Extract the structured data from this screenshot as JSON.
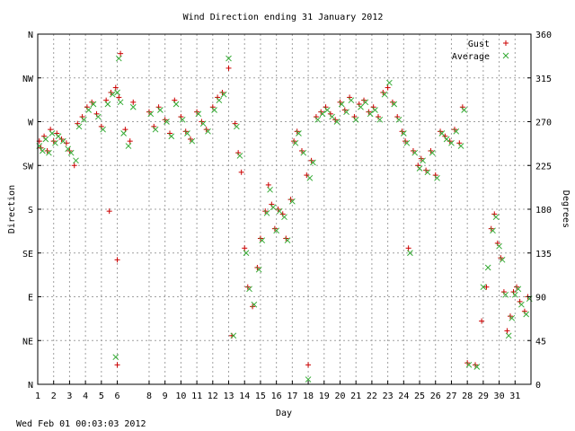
{
  "chart_data": {
    "type": "scatter",
    "title": "Wind Direction ending 31 January 2012",
    "xlabel": "Day",
    "ylabel_left": "Direction",
    "ylabel_right": "Degrees",
    "xlim": [
      1,
      32
    ],
    "ylim": [
      0,
      360
    ],
    "x_ticks": [
      1,
      2,
      3,
      4,
      5,
      6,
      8,
      9,
      10,
      11,
      12,
      13,
      14,
      15,
      16,
      17,
      18,
      19,
      20,
      21,
      22,
      23,
      24,
      25,
      26,
      27,
      28,
      29,
      30,
      31
    ],
    "y_ticks_left": [
      {
        "value": 0,
        "label": "N"
      },
      {
        "value": 45,
        "label": "NE"
      },
      {
        "value": 90,
        "label": "E"
      },
      {
        "value": 135,
        "label": "SE"
      },
      {
        "value": 180,
        "label": "S"
      },
      {
        "value": 225,
        "label": "SW"
      },
      {
        "value": 270,
        "label": "W"
      },
      {
        "value": 315,
        "label": "NW"
      },
      {
        "value": 360,
        "label": "N"
      }
    ],
    "y_ticks_right": [
      0,
      45,
      90,
      135,
      180,
      225,
      270,
      315,
      360
    ],
    "grid": true,
    "legend_position": "top-right",
    "series": [
      {
        "name": "Gust",
        "marker": "+",
        "color": "#cc0000",
        "points": [
          [
            1.1,
            250
          ],
          [
            1.2,
            243
          ],
          [
            1.4,
            255
          ],
          [
            1.6,
            240
          ],
          [
            1.8,
            262
          ],
          [
            2.0,
            250
          ],
          [
            2.2,
            258
          ],
          [
            2.5,
            252
          ],
          [
            2.8,
            248
          ],
          [
            3.0,
            240
          ],
          [
            3.3,
            225
          ],
          [
            3.5,
            268
          ],
          [
            3.8,
            275
          ],
          [
            4.1,
            285
          ],
          [
            4.4,
            290
          ],
          [
            4.7,
            278
          ],
          [
            5.0,
            265
          ],
          [
            5.3,
            292
          ],
          [
            5.6,
            300
          ],
          [
            5.9,
            305
          ],
          [
            6.1,
            295
          ],
          [
            5.5,
            178
          ],
          [
            6.0,
            128
          ],
          [
            6.0,
            20
          ],
          [
            6.2,
            340
          ],
          [
            6.5,
            262
          ],
          [
            6.8,
            250
          ],
          [
            7.0,
            290
          ],
          [
            8.0,
            280
          ],
          [
            8.3,
            265
          ],
          [
            8.6,
            285
          ],
          [
            9.0,
            272
          ],
          [
            9.3,
            258
          ],
          [
            9.6,
            292
          ],
          [
            10.0,
            275
          ],
          [
            10.3,
            260
          ],
          [
            10.6,
            252
          ],
          [
            11.0,
            280
          ],
          [
            11.3,
            270
          ],
          [
            11.6,
            262
          ],
          [
            12.0,
            285
          ],
          [
            12.3,
            295
          ],
          [
            12.6,
            300
          ],
          [
            13.0,
            325
          ],
          [
            13.2,
            50
          ],
          [
            13.4,
            268
          ],
          [
            13.6,
            238
          ],
          [
            13.8,
            218
          ],
          [
            14.0,
            140
          ],
          [
            14.2,
            100
          ],
          [
            14.5,
            80
          ],
          [
            14.8,
            120
          ],
          [
            15.0,
            150
          ],
          [
            15.3,
            178
          ],
          [
            15.5,
            205
          ],
          [
            15.7,
            185
          ],
          [
            15.9,
            160
          ],
          [
            16.1,
            180
          ],
          [
            16.4,
            175
          ],
          [
            16.6,
            150
          ],
          [
            16.9,
            190
          ],
          [
            17.1,
            250
          ],
          [
            17.3,
            260
          ],
          [
            17.6,
            240
          ],
          [
            17.9,
            215
          ],
          [
            18.0,
            20
          ],
          [
            18.2,
            230
          ],
          [
            18.5,
            275
          ],
          [
            18.8,
            280
          ],
          [
            19.1,
            285
          ],
          [
            19.4,
            278
          ],
          [
            19.7,
            272
          ],
          [
            20.0,
            290
          ],
          [
            20.3,
            282
          ],
          [
            20.6,
            295
          ],
          [
            20.9,
            275
          ],
          [
            21.2,
            288
          ],
          [
            21.5,
            292
          ],
          [
            21.8,
            280
          ],
          [
            22.1,
            285
          ],
          [
            22.4,
            275
          ],
          [
            22.7,
            300
          ],
          [
            23.0,
            305
          ],
          [
            23.3,
            290
          ],
          [
            23.6,
            275
          ],
          [
            23.9,
            260
          ],
          [
            24.1,
            250
          ],
          [
            24.3,
            140
          ],
          [
            24.6,
            240
          ],
          [
            24.9,
            225
          ],
          [
            25.1,
            232
          ],
          [
            25.4,
            220
          ],
          [
            25.7,
            240
          ],
          [
            26.0,
            215
          ],
          [
            26.3,
            260
          ],
          [
            26.6,
            255
          ],
          [
            26.9,
            250
          ],
          [
            27.2,
            262
          ],
          [
            27.5,
            248
          ],
          [
            27.7,
            285
          ],
          [
            28.0,
            22
          ],
          [
            28.5,
            20
          ],
          [
            28.9,
            65
          ],
          [
            29.2,
            100
          ],
          [
            29.5,
            160
          ],
          [
            29.7,
            175
          ],
          [
            29.9,
            145
          ],
          [
            30.1,
            130
          ],
          [
            30.3,
            95
          ],
          [
            30.5,
            55
          ],
          [
            30.7,
            70
          ],
          [
            30.9,
            95
          ],
          [
            31.1,
            100
          ],
          [
            31.3,
            85
          ],
          [
            31.6,
            75
          ],
          [
            31.8,
            90
          ]
        ]
      },
      {
        "name": "Average",
        "marker": "x",
        "color": "#33aa33",
        "points": [
          [
            1.1,
            245
          ],
          [
            1.3,
            240
          ],
          [
            1.5,
            252
          ],
          [
            1.7,
            238
          ],
          [
            1.9,
            258
          ],
          [
            2.1,
            248
          ],
          [
            2.3,
            255
          ],
          [
            2.6,
            250
          ],
          [
            2.9,
            242
          ],
          [
            3.1,
            238
          ],
          [
            3.4,
            230
          ],
          [
            3.6,
            265
          ],
          [
            3.9,
            272
          ],
          [
            4.2,
            282
          ],
          [
            4.5,
            288
          ],
          [
            4.8,
            275
          ],
          [
            5.1,
            262
          ],
          [
            5.4,
            288
          ],
          [
            5.7,
            298
          ],
          [
            6.0,
            300
          ],
          [
            6.2,
            290
          ],
          [
            5.9,
            28
          ],
          [
            6.1,
            335
          ],
          [
            6.4,
            258
          ],
          [
            6.7,
            245
          ],
          [
            7.0,
            285
          ],
          [
            8.1,
            278
          ],
          [
            8.4,
            262
          ],
          [
            8.7,
            282
          ],
          [
            9.1,
            270
          ],
          [
            9.4,
            255
          ],
          [
            9.7,
            288
          ],
          [
            10.1,
            272
          ],
          [
            10.4,
            258
          ],
          [
            10.7,
            250
          ],
          [
            11.1,
            278
          ],
          [
            11.4,
            268
          ],
          [
            11.7,
            260
          ],
          [
            12.1,
            282
          ],
          [
            12.4,
            292
          ],
          [
            12.7,
            298
          ],
          [
            13.0,
            335
          ],
          [
            13.3,
            50
          ],
          [
            13.5,
            265
          ],
          [
            13.7,
            235
          ],
          [
            14.1,
            135
          ],
          [
            14.3,
            98
          ],
          [
            14.6,
            82
          ],
          [
            14.9,
            118
          ],
          [
            15.1,
            148
          ],
          [
            15.4,
            176
          ],
          [
            15.6,
            200
          ],
          [
            15.8,
            182
          ],
          [
            16.0,
            158
          ],
          [
            16.2,
            178
          ],
          [
            16.5,
            172
          ],
          [
            16.7,
            148
          ],
          [
            17.0,
            188
          ],
          [
            17.2,
            248
          ],
          [
            17.4,
            258
          ],
          [
            17.7,
            238
          ],
          [
            18.0,
            5
          ],
          [
            18.1,
            212
          ],
          [
            18.3,
            228
          ],
          [
            18.6,
            272
          ],
          [
            18.9,
            278
          ],
          [
            19.2,
            282
          ],
          [
            19.5,
            275
          ],
          [
            19.8,
            270
          ],
          [
            20.1,
            288
          ],
          [
            20.4,
            280
          ],
          [
            20.7,
            292
          ],
          [
            21.0,
            272
          ],
          [
            21.3,
            285
          ],
          [
            21.6,
            290
          ],
          [
            21.9,
            278
          ],
          [
            22.2,
            282
          ],
          [
            22.5,
            272
          ],
          [
            22.8,
            298
          ],
          [
            23.1,
            310
          ],
          [
            23.4,
            288
          ],
          [
            23.7,
            272
          ],
          [
            24.0,
            258
          ],
          [
            24.2,
            248
          ],
          [
            24.4,
            135
          ],
          [
            24.7,
            238
          ],
          [
            25.0,
            222
          ],
          [
            25.2,
            230
          ],
          [
            25.5,
            218
          ],
          [
            25.8,
            238
          ],
          [
            26.1,
            212
          ],
          [
            26.4,
            258
          ],
          [
            26.7,
            252
          ],
          [
            27.0,
            248
          ],
          [
            27.3,
            260
          ],
          [
            27.6,
            245
          ],
          [
            27.8,
            282
          ],
          [
            28.1,
            20
          ],
          [
            28.6,
            18
          ],
          [
            29.0,
            100
          ],
          [
            29.3,
            120
          ],
          [
            29.6,
            158
          ],
          [
            29.8,
            172
          ],
          [
            30.0,
            142
          ],
          [
            30.2,
            128
          ],
          [
            30.4,
            92
          ],
          [
            30.6,
            50
          ],
          [
            30.8,
            68
          ],
          [
            31.0,
            92
          ],
          [
            31.2,
            98
          ],
          [
            31.4,
            82
          ],
          [
            31.7,
            72
          ],
          [
            31.9,
            88
          ]
        ]
      }
    ]
  },
  "footer": {
    "timestamp": "Wed Feb 01 00:03:03 2012"
  }
}
